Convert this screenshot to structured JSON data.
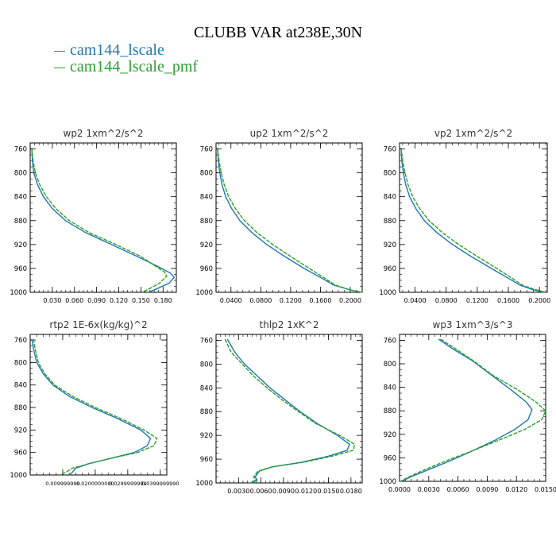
{
  "title": "CLUBB VAR at238E,30N",
  "legend": [
    {
      "name": "cam144_lscale",
      "color": "#1f77b4"
    },
    {
      "name": "cam144_lscale_pmf",
      "color": "#2ca02c"
    }
  ],
  "chart_data": [
    {
      "type": "line",
      "title": "wp2   1xm^2/s^2",
      "xlim": [
        0.0,
        0.198
      ],
      "ylim": [
        750,
        1000
      ],
      "y_inverted": true,
      "yticks": [
        "760",
        "800",
        "840",
        "880",
        "920",
        "960",
        "1000"
      ],
      "xticks": [
        {
          "v": 0.03,
          "label": "0.030"
        },
        {
          "v": 0.06,
          "label": "0.060"
        },
        {
          "v": 0.09,
          "label": "0.090"
        },
        {
          "v": 0.12,
          "label": "0.120"
        },
        {
          "v": 0.15,
          "label": "0.150"
        },
        {
          "v": 0.18,
          "label": "0.180"
        }
      ],
      "series": [
        {
          "name": "cam144_lscale",
          "points": [
            [
              0.002,
              758
            ],
            [
              0.003,
              780
            ],
            [
              0.005,
              800
            ],
            [
              0.01,
              820
            ],
            [
              0.018,
              840
            ],
            [
              0.03,
              860
            ],
            [
              0.048,
              880
            ],
            [
              0.075,
              900
            ],
            [
              0.11,
              920
            ],
            [
              0.145,
              940
            ],
            [
              0.175,
              958
            ],
            [
              0.19,
              968
            ],
            [
              0.195,
              975
            ],
            [
              0.188,
              985
            ],
            [
              0.17,
              995
            ],
            [
              0.16,
              1000
            ]
          ]
        },
        {
          "name": "cam144_lscale_pmf",
          "points": [
            [
              0.002,
              758
            ],
            [
              0.004,
              780
            ],
            [
              0.007,
              800
            ],
            [
              0.013,
              820
            ],
            [
              0.022,
              840
            ],
            [
              0.035,
              860
            ],
            [
              0.053,
              880
            ],
            [
              0.08,
              900
            ],
            [
              0.116,
              920
            ],
            [
              0.15,
              940
            ],
            [
              0.172,
              958
            ],
            [
              0.182,
              966
            ],
            [
              0.185,
              973
            ],
            [
              0.175,
              985
            ],
            [
              0.16,
              995
            ],
            [
              0.152,
              1000
            ]
          ]
        }
      ]
    },
    {
      "type": "line",
      "title": "up2   1xm^2/s^2",
      "xlim": [
        0.02,
        0.216
      ],
      "ylim": [
        750,
        1000
      ],
      "y_inverted": true,
      "yticks": [
        "760",
        "800",
        "840",
        "880",
        "920",
        "960",
        "1000"
      ],
      "xticks": [
        {
          "v": 0.04,
          "label": "0.0400"
        },
        {
          "v": 0.08,
          "label": "0.0800"
        },
        {
          "v": 0.12,
          "label": "0.1200"
        },
        {
          "v": 0.16,
          "label": "0.1600"
        },
        {
          "v": 0.2,
          "label": "0.2000"
        }
      ],
      "series": [
        {
          "name": "cam144_lscale",
          "points": [
            [
              0.022,
              758
            ],
            [
              0.023,
              780
            ],
            [
              0.025,
              800
            ],
            [
              0.028,
              820
            ],
            [
              0.033,
              840
            ],
            [
              0.041,
              860
            ],
            [
              0.052,
              880
            ],
            [
              0.068,
              900
            ],
            [
              0.088,
              920
            ],
            [
              0.112,
              940
            ],
            [
              0.138,
              960
            ],
            [
              0.16,
              975
            ],
            [
              0.178,
              988
            ],
            [
              0.2,
              996
            ],
            [
              0.215,
              1000
            ]
          ]
        },
        {
          "name": "cam144_lscale_pmf",
          "points": [
            [
              0.022,
              758
            ],
            [
              0.024,
              780
            ],
            [
              0.027,
              800
            ],
            [
              0.031,
              820
            ],
            [
              0.037,
              840
            ],
            [
              0.046,
              860
            ],
            [
              0.058,
              880
            ],
            [
              0.075,
              900
            ],
            [
              0.096,
              920
            ],
            [
              0.12,
              940
            ],
            [
              0.145,
              960
            ],
            [
              0.164,
              975
            ],
            [
              0.18,
              988
            ],
            [
              0.2,
              996
            ],
            [
              0.216,
              1000
            ]
          ]
        }
      ]
    },
    {
      "type": "line",
      "title": "vp2   1xm^2/s^2",
      "xlim": [
        0.02,
        0.21
      ],
      "ylim": [
        750,
        1000
      ],
      "y_inverted": true,
      "yticks": [
        "760",
        "800",
        "840",
        "880",
        "920",
        "960",
        "1000"
      ],
      "xticks": [
        {
          "v": 0.04,
          "label": "0.0400"
        },
        {
          "v": 0.08,
          "label": "0.0800"
        },
        {
          "v": 0.12,
          "label": "0.1200"
        },
        {
          "v": 0.16,
          "label": "0.1600"
        },
        {
          "v": 0.2,
          "label": "0.2000"
        }
      ],
      "series": [
        {
          "name": "cam144_lscale",
          "points": [
            [
              0.022,
              758
            ],
            [
              0.023,
              780
            ],
            [
              0.025,
              800
            ],
            [
              0.028,
              820
            ],
            [
              0.033,
              840
            ],
            [
              0.041,
              860
            ],
            [
              0.052,
              880
            ],
            [
              0.068,
              900
            ],
            [
              0.088,
              920
            ],
            [
              0.112,
              940
            ],
            [
              0.138,
              960
            ],
            [
              0.158,
              975
            ],
            [
              0.175,
              988
            ],
            [
              0.19,
              995
            ],
            [
              0.205,
              1000
            ]
          ]
        },
        {
          "name": "cam144_lscale_pmf",
          "points": [
            [
              0.022,
              758
            ],
            [
              0.024,
              780
            ],
            [
              0.027,
              800
            ],
            [
              0.031,
              820
            ],
            [
              0.037,
              840
            ],
            [
              0.046,
              860
            ],
            [
              0.058,
              880
            ],
            [
              0.075,
              900
            ],
            [
              0.096,
              920
            ],
            [
              0.12,
              940
            ],
            [
              0.145,
              960
            ],
            [
              0.163,
              975
            ],
            [
              0.178,
              988
            ],
            [
              0.193,
              995
            ],
            [
              0.208,
              1000
            ]
          ]
        }
      ]
    },
    {
      "type": "line",
      "title": "rtp2   1E-6x(kg/kg)^2",
      "xlim": [
        0.0,
        0.042
      ],
      "ylim": [
        750,
        1000
      ],
      "y_inverted": true,
      "yticks": [
        "760",
        "800",
        "840",
        "880",
        "920",
        "960",
        "1000"
      ],
      "xticks": [
        {
          "v": 0.01,
          "label": "0.009999999"
        },
        {
          "v": 0.02,
          "label": "0.0200000000"
        },
        {
          "v": 0.03,
          "label": "0.0299999999"
        },
        {
          "v": 0.04,
          "label": "0.0399999990"
        }
      ],
      "series": [
        {
          "name": "cam144_lscale",
          "points": [
            [
              0.0005,
              758
            ],
            [
              0.001,
              775
            ],
            [
              0.002,
              800
            ],
            [
              0.004,
              820
            ],
            [
              0.007,
              840
            ],
            [
              0.012,
              860
            ],
            [
              0.019,
              880
            ],
            [
              0.027,
              900
            ],
            [
              0.034,
              920
            ],
            [
              0.037,
              935
            ],
            [
              0.036,
              948
            ],
            [
              0.032,
              960
            ],
            [
              0.025,
              970
            ],
            [
              0.018,
              980
            ],
            [
              0.014,
              988
            ],
            [
              0.013,
              995
            ],
            [
              0.012,
              1000
            ]
          ]
        },
        {
          "name": "cam144_lscale_pmf",
          "points": [
            [
              0.001,
              758
            ],
            [
              0.0015,
              775
            ],
            [
              0.0025,
              800
            ],
            [
              0.0045,
              820
            ],
            [
              0.0075,
              840
            ],
            [
              0.013,
              860
            ],
            [
              0.02,
              880
            ],
            [
              0.028,
              900
            ],
            [
              0.035,
              920
            ],
            [
              0.039,
              935
            ],
            [
              0.038,
              948
            ],
            [
              0.033,
              960
            ],
            [
              0.025,
              970
            ],
            [
              0.018,
              980
            ],
            [
              0.013,
              988
            ],
            [
              0.011,
              995
            ],
            [
              0.009,
              1000
            ]
          ]
        }
      ]
    },
    {
      "type": "line",
      "title": "thlp2   1xK^2",
      "xlim": [
        0.0,
        0.0195
      ],
      "ylim": [
        750,
        1000
      ],
      "y_inverted": true,
      "yticks": [
        "760",
        "800",
        "840",
        "880",
        "920",
        "960",
        "1000"
      ],
      "xticks": [
        {
          "v": 0.003,
          "label": "0.0030"
        },
        {
          "v": 0.006,
          "label": "0.0060"
        },
        {
          "v": 0.009,
          "label": "0.0090"
        },
        {
          "v": 0.012,
          "label": "0.0120"
        },
        {
          "v": 0.015,
          "label": "0.0150"
        },
        {
          "v": 0.018,
          "label": "0.0180"
        }
      ],
      "series": [
        {
          "name": "cam144_lscale",
          "points": [
            [
              0.0015,
              758
            ],
            [
              0.0025,
              780
            ],
            [
              0.0038,
              800
            ],
            [
              0.0055,
              820
            ],
            [
              0.0072,
              840
            ],
            [
              0.0092,
              860
            ],
            [
              0.0112,
              880
            ],
            [
              0.0135,
              900
            ],
            [
              0.0162,
              920
            ],
            [
              0.0178,
              935
            ],
            [
              0.0175,
              945
            ],
            [
              0.015,
              955
            ],
            [
              0.0115,
              965
            ],
            [
              0.0075,
              973
            ],
            [
              0.0058,
              980
            ],
            [
              0.0052,
              990
            ],
            [
              0.0055,
              995
            ],
            [
              0.0048,
              1000
            ]
          ]
        },
        {
          "name": "cam144_lscale_pmf",
          "points": [
            [
              0.0012,
              758
            ],
            [
              0.002,
              780
            ],
            [
              0.0035,
              800
            ],
            [
              0.005,
              820
            ],
            [
              0.0068,
              840
            ],
            [
              0.0088,
              860
            ],
            [
              0.011,
              880
            ],
            [
              0.0133,
              900
            ],
            [
              0.0165,
              920
            ],
            [
              0.0185,
              935
            ],
            [
              0.0183,
              945
            ],
            [
              0.0155,
              955
            ],
            [
              0.0118,
              965
            ],
            [
              0.0075,
              973
            ],
            [
              0.0056,
              980
            ],
            [
              0.005,
              990
            ],
            [
              0.0053,
              995
            ],
            [
              0.0046,
              1000
            ]
          ]
        }
      ]
    },
    {
      "type": "line",
      "title": "wp3   1xm^3/s^3",
      "xlim": [
        0.0,
        0.015
      ],
      "ylim": [
        750,
        1000
      ],
      "y_inverted": true,
      "yticks": [
        "760",
        "800",
        "840",
        "880",
        "920",
        "960",
        "1000"
      ],
      "xticks": [
        {
          "v": 0.0,
          "label": "0.0000"
        },
        {
          "v": 0.003,
          "label": "0.0030"
        },
        {
          "v": 0.006,
          "label": "0.0060"
        },
        {
          "v": 0.009,
          "label": "0.0090"
        },
        {
          "v": 0.012,
          "label": "0.0120"
        },
        {
          "v": 0.015,
          "label": "0.0150"
        }
      ],
      "series": [
        {
          "name": "cam144_lscale",
          "points": [
            [
              0.004,
              758
            ],
            [
              0.0055,
              775
            ],
            [
              0.0075,
              795
            ],
            [
              0.0095,
              820
            ],
            [
              0.0115,
              845
            ],
            [
              0.013,
              865
            ],
            [
              0.0136,
              878
            ],
            [
              0.0132,
              895
            ],
            [
              0.0118,
              912
            ],
            [
              0.0098,
              930
            ],
            [
              0.0075,
              948
            ],
            [
              0.0052,
              965
            ],
            [
              0.003,
              980
            ],
            [
              0.0012,
              992
            ],
            [
              0.0002,
              1000
            ]
          ]
        },
        {
          "name": "cam144_lscale_pmf",
          "points": [
            [
              0.0042,
              758
            ],
            [
              0.0058,
              775
            ],
            [
              0.0076,
              795
            ],
            [
              0.0096,
              820
            ],
            [
              0.0122,
              845
            ],
            [
              0.014,
              865
            ],
            [
              0.015,
              880
            ],
            [
              0.0146,
              895
            ],
            [
              0.0128,
              912
            ],
            [
              0.0102,
              930
            ],
            [
              0.0075,
              948
            ],
            [
              0.0048,
              965
            ],
            [
              0.0026,
              980
            ],
            [
              0.001,
              992
            ],
            [
              0.0001,
              1000
            ]
          ]
        }
      ]
    }
  ]
}
